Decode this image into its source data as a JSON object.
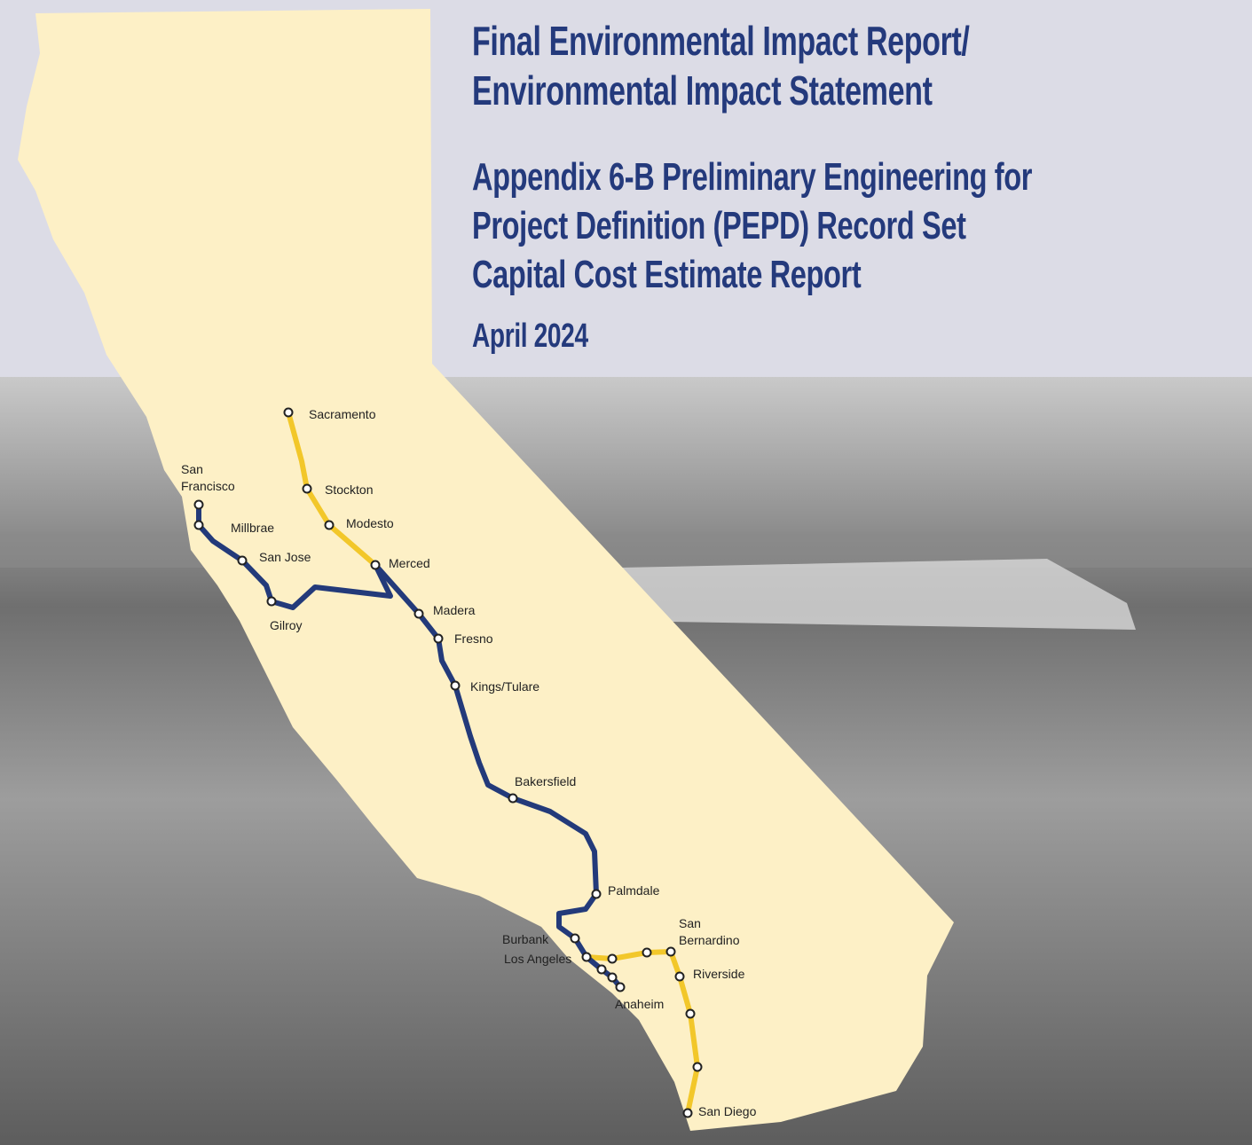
{
  "header": {
    "title": [
      "Final Environmental Impact Report/",
      "Environmental Impact Statement"
    ],
    "appendix": [
      "Appendix 6-B Preliminary Engineering for",
      "Project Definition (PEPD) Record Set",
      "Capital Cost Estimate Report"
    ],
    "date": "April 2024"
  },
  "map": {
    "stations": [
      "Sacramento",
      "Stockton",
      "Modesto",
      "Merced",
      "Madera",
      "Fresno",
      "Kings/Tulare",
      "Bakersfield",
      "Palmdale",
      "San\nFrancisco",
      "Millbrae",
      "San Jose",
      "Gilroy",
      "Burbank",
      "Los Angeles",
      "Anaheim",
      "San\nBernardino",
      "Riverside",
      "San Diego"
    ]
  }
}
